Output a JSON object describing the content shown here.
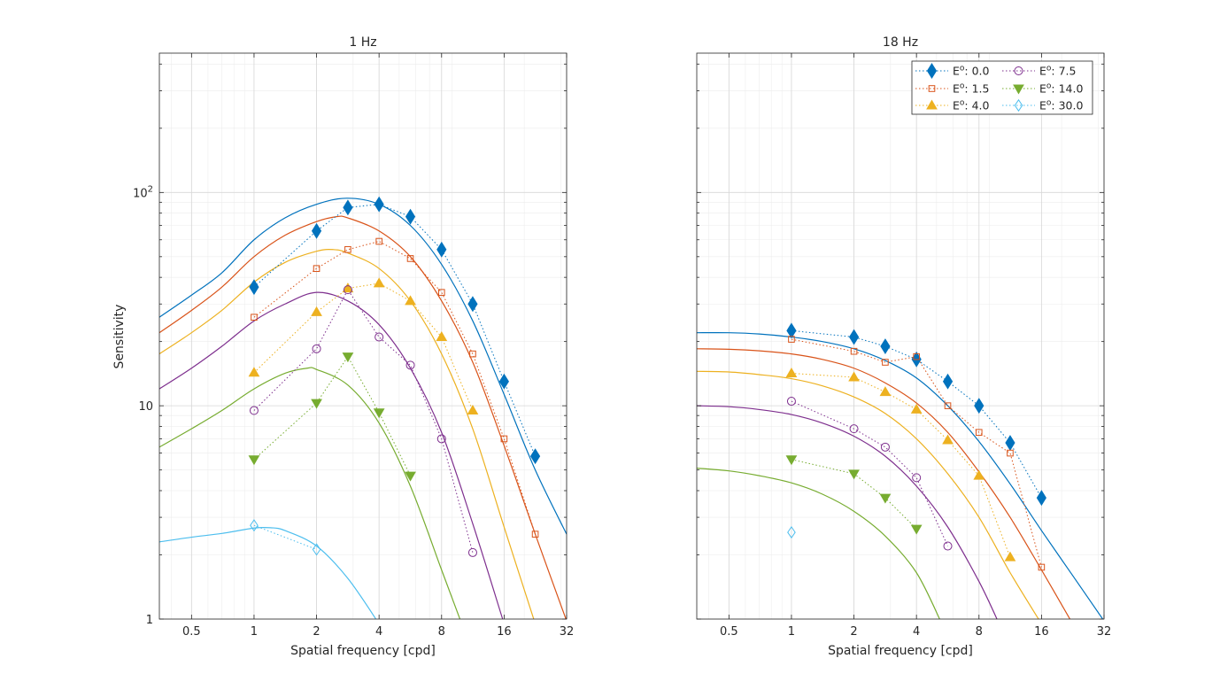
{
  "chart_data": [
    {
      "type": "line",
      "title": "1 Hz",
      "xlabel": "Spatial frequency [cpd]",
      "ylabel": "Sensitivity",
      "xscale": "log2",
      "yscale": "log10",
      "xlim": [
        0.35,
        32
      ],
      "ylim": [
        1,
        450
      ],
      "xticks": [
        0.5,
        1,
        2,
        4,
        8,
        16,
        32
      ],
      "xtick_labels": [
        "0.5",
        "1",
        "2",
        "4",
        "8",
        "16",
        "32"
      ],
      "yticks": [
        {
          "value": 1,
          "base": "1",
          "exp": ""
        },
        {
          "value": 10,
          "base": "10",
          "exp": ""
        },
        {
          "value": 100,
          "base": "10",
          "exp": "2"
        }
      ],
      "grid": true,
      "series": [
        {
          "name": "0.0",
          "color": "#0072BD",
          "marker": "diamond-filled",
          "points": [
            [
              1,
              36
            ],
            [
              2,
              66
            ],
            [
              2.83,
              85
            ],
            [
              4,
              88
            ],
            [
              5.66,
              77
            ],
            [
              8,
              54
            ],
            [
              11.3,
              30
            ],
            [
              16,
              13
            ],
            [
              22.6,
              5.8
            ]
          ],
          "model": [
            [
              0.35,
              26
            ],
            [
              0.5,
              33
            ],
            [
              0.7,
              42
            ],
            [
              1,
              60
            ],
            [
              1.41,
              76
            ],
            [
              2,
              88
            ],
            [
              2.8,
              94
            ],
            [
              4,
              88
            ],
            [
              5.66,
              70
            ],
            [
              8,
              46
            ],
            [
              11.3,
              25
            ],
            [
              16,
              11.3
            ],
            [
              22.6,
              5
            ],
            [
              32,
              2.5
            ]
          ]
        },
        {
          "name": "1.5",
          "color": "#D95319",
          "marker": "square-open",
          "points": [
            [
              1,
              26
            ],
            [
              2,
              44
            ],
            [
              2.83,
              54
            ],
            [
              4,
              59
            ],
            [
              5.66,
              49
            ],
            [
              8,
              34
            ],
            [
              11.3,
              17.5
            ],
            [
              16,
              7
            ],
            [
              22.6,
              2.5
            ]
          ],
          "model": [
            [
              0.35,
              22
            ],
            [
              0.5,
              28
            ],
            [
              0.7,
              36
            ],
            [
              1,
              50
            ],
            [
              1.41,
              63
            ],
            [
              2,
              73
            ],
            [
              2.5,
              77
            ],
            [
              2.83,
              76
            ],
            [
              4,
              66
            ],
            [
              5.66,
              50
            ],
            [
              8,
              31
            ],
            [
              11.3,
              16
            ],
            [
              16,
              6.5
            ],
            [
              22.6,
              2.5
            ],
            [
              32,
              0.98
            ]
          ]
        },
        {
          "name": "4.0",
          "color": "#EDB120",
          "marker": "triangle-up-filled",
          "points": [
            [
              1,
              14.3
            ],
            [
              2,
              27.5
            ],
            [
              2.83,
              35.5
            ],
            [
              4,
              37.5
            ],
            [
              5.66,
              31
            ],
            [
              8,
              21
            ],
            [
              11.3,
              9.5
            ]
          ],
          "model": [
            [
              0.35,
              17.5
            ],
            [
              0.5,
              22
            ],
            [
              0.7,
              28
            ],
            [
              1,
              38
            ],
            [
              1.41,
              47
            ],
            [
              2,
              53
            ],
            [
              2.4,
              54
            ],
            [
              2.83,
              52
            ],
            [
              4,
              44
            ],
            [
              5.66,
              31
            ],
            [
              8,
              17.5
            ],
            [
              11.3,
              7.8
            ],
            [
              16,
              2.7
            ],
            [
              22.6,
              0.95
            ]
          ]
        },
        {
          "name": "7.5",
          "color": "#7E2F8E",
          "marker": "circle-open",
          "points": [
            [
              1,
              9.5
            ],
            [
              2,
              18.5
            ],
            [
              2.83,
              35
            ],
            [
              4,
              21
            ],
            [
              5.66,
              15.5
            ],
            [
              8,
              7
            ],
            [
              11.3,
              2.05
            ]
          ],
          "model": [
            [
              0.35,
              12
            ],
            [
              0.5,
              15
            ],
            [
              0.7,
              19
            ],
            [
              1,
              25
            ],
            [
              1.41,
              30
            ],
            [
              2,
              34
            ],
            [
              2.83,
              31
            ],
            [
              4,
              24
            ],
            [
              5.66,
              15
            ],
            [
              8,
              7.5
            ],
            [
              11.3,
              2.8
            ],
            [
              16,
              0.95
            ]
          ]
        },
        {
          "name": "14.0",
          "color": "#77AC30",
          "marker": "triangle-down-filled",
          "points": [
            [
              1,
              5.6
            ],
            [
              2,
              10.3
            ],
            [
              2.83,
              17
            ],
            [
              4,
              9.3
            ],
            [
              5.66,
              4.7
            ]
          ],
          "model": [
            [
              0.35,
              6.4
            ],
            [
              0.5,
              7.8
            ],
            [
              0.7,
              9.5
            ],
            [
              1,
              12
            ],
            [
              1.41,
              14.2
            ],
            [
              1.8,
              15
            ],
            [
              2,
              14.8
            ],
            [
              2.83,
              12.5
            ],
            [
              4,
              8.3
            ],
            [
              5.66,
              4.2
            ],
            [
              8,
              1.7
            ],
            [
              10,
              0.95
            ]
          ]
        },
        {
          "name": "30.0",
          "color": "#4DBEEE",
          "marker": "diamond-open",
          "points": [
            [
              1,
              2.75
            ],
            [
              2,
              2.12
            ]
          ],
          "model": [
            [
              0.35,
              2.3
            ],
            [
              0.5,
              2.42
            ],
            [
              0.7,
              2.52
            ],
            [
              1,
              2.67
            ],
            [
              1.2,
              2.68
            ],
            [
              1.41,
              2.6
            ],
            [
              2,
              2.2
            ],
            [
              2.83,
              1.55
            ],
            [
              4,
              0.95
            ]
          ]
        }
      ]
    },
    {
      "type": "line",
      "title": "18 Hz",
      "xlabel": "Spatial frequency [cpd]",
      "ylabel": "",
      "xscale": "log2",
      "yscale": "log10",
      "xlim": [
        0.35,
        32
      ],
      "ylim": [
        1,
        450
      ],
      "xticks": [
        0.5,
        1,
        2,
        4,
        8,
        16,
        32
      ],
      "xtick_labels": [
        "0.5",
        "1",
        "2",
        "4",
        "8",
        "16",
        "32"
      ],
      "yticks": [],
      "grid": true,
      "legend": {
        "location": "top-right",
        "columns": 2,
        "prefix_base": "E",
        "prefix_sup": "o",
        "separator": ": ",
        "entries": [
          "0.0",
          "1.5",
          "4.0",
          "7.5",
          "14.0",
          "30.0"
        ]
      },
      "series": [
        {
          "name": "0.0",
          "color": "#0072BD",
          "marker": "diamond-filled",
          "points": [
            [
              1,
              22.5
            ],
            [
              2,
              21
            ],
            [
              2.83,
              19
            ],
            [
              4,
              16.5
            ],
            [
              5.66,
              13
            ],
            [
              8,
              10
            ],
            [
              11.3,
              6.7
            ],
            [
              16,
              3.7
            ]
          ],
          "model": [
            [
              0.35,
              22
            ],
            [
              0.5,
              22
            ],
            [
              0.7,
              21.7
            ],
            [
              1,
              21
            ],
            [
              1.41,
              20
            ],
            [
              2,
              18.5
            ],
            [
              2.83,
              16.3
            ],
            [
              4,
              13.5
            ],
            [
              5.66,
              10
            ],
            [
              8,
              6.8
            ],
            [
              11.3,
              4.3
            ],
            [
              16,
              2.6
            ],
            [
              22.6,
              1.6
            ],
            [
              32,
              0.98
            ]
          ]
        },
        {
          "name": "1.5",
          "color": "#D95319",
          "marker": "square-open",
          "points": [
            [
              1,
              20.5
            ],
            [
              2,
              18
            ],
            [
              2.83,
              16
            ],
            [
              4,
              17
            ],
            [
              5.66,
              10
            ],
            [
              8,
              7.5
            ],
            [
              11.3,
              6
            ],
            [
              16,
              1.75
            ]
          ],
          "model": [
            [
              0.35,
              18.5
            ],
            [
              0.5,
              18.4
            ],
            [
              0.7,
              18.1
            ],
            [
              1,
              17.5
            ],
            [
              1.41,
              16.5
            ],
            [
              2,
              15
            ],
            [
              2.83,
              12.8
            ],
            [
              4,
              10.3
            ],
            [
              5.66,
              7.5
            ],
            [
              8,
              4.9
            ],
            [
              11.3,
              3
            ],
            [
              16,
              1.7
            ],
            [
              22.6,
              0.95
            ]
          ]
        },
        {
          "name": "4.0",
          "color": "#EDB120",
          "marker": "triangle-up-filled",
          "points": [
            [
              1,
              14.2
            ],
            [
              2,
              13.6
            ],
            [
              2.83,
              11.6
            ],
            [
              4,
              9.6
            ],
            [
              5.66,
              6.9
            ],
            [
              8,
              4.7
            ],
            [
              11.3,
              1.95
            ]
          ],
          "model": [
            [
              0.35,
              14.5
            ],
            [
              0.5,
              14.4
            ],
            [
              0.7,
              14
            ],
            [
              1,
              13.4
            ],
            [
              1.41,
              12.4
            ],
            [
              2,
              11
            ],
            [
              2.83,
              9.2
            ],
            [
              4,
              7
            ],
            [
              5.66,
              4.8
            ],
            [
              8,
              3
            ],
            [
              11.3,
              1.65
            ],
            [
              16,
              0.95
            ]
          ]
        },
        {
          "name": "7.5",
          "color": "#7E2F8E",
          "marker": "circle-open",
          "points": [
            [
              1,
              10.5
            ],
            [
              2,
              7.8
            ],
            [
              2.83,
              6.4
            ],
            [
              4,
              4.6
            ],
            [
              5.66,
              2.2
            ]
          ],
          "model": [
            [
              0.35,
              10
            ],
            [
              0.5,
              9.9
            ],
            [
              0.7,
              9.6
            ],
            [
              1,
              9.1
            ],
            [
              1.41,
              8.3
            ],
            [
              2,
              7.2
            ],
            [
              2.83,
              5.8
            ],
            [
              4,
              4.2
            ],
            [
              5.66,
              2.7
            ],
            [
              8,
              1.5
            ],
            [
              10,
              0.95
            ]
          ]
        },
        {
          "name": "14.0",
          "color": "#77AC30",
          "marker": "triangle-down-filled",
          "points": [
            [
              1,
              5.6
            ],
            [
              2,
              4.8
            ],
            [
              2.83,
              3.7
            ],
            [
              4,
              2.65
            ]
          ],
          "model": [
            [
              0.35,
              5.1
            ],
            [
              0.5,
              4.95
            ],
            [
              0.7,
              4.7
            ],
            [
              1,
              4.35
            ],
            [
              1.41,
              3.85
            ],
            [
              2,
              3.2
            ],
            [
              2.83,
              2.45
            ],
            [
              4,
              1.65
            ],
            [
              5.3,
              0.95
            ]
          ]
        },
        {
          "name": "30.0",
          "color": "#4DBEEE",
          "marker": "diamond-open",
          "points": [
            [
              1,
              2.55
            ]
          ],
          "model": []
        }
      ]
    }
  ]
}
